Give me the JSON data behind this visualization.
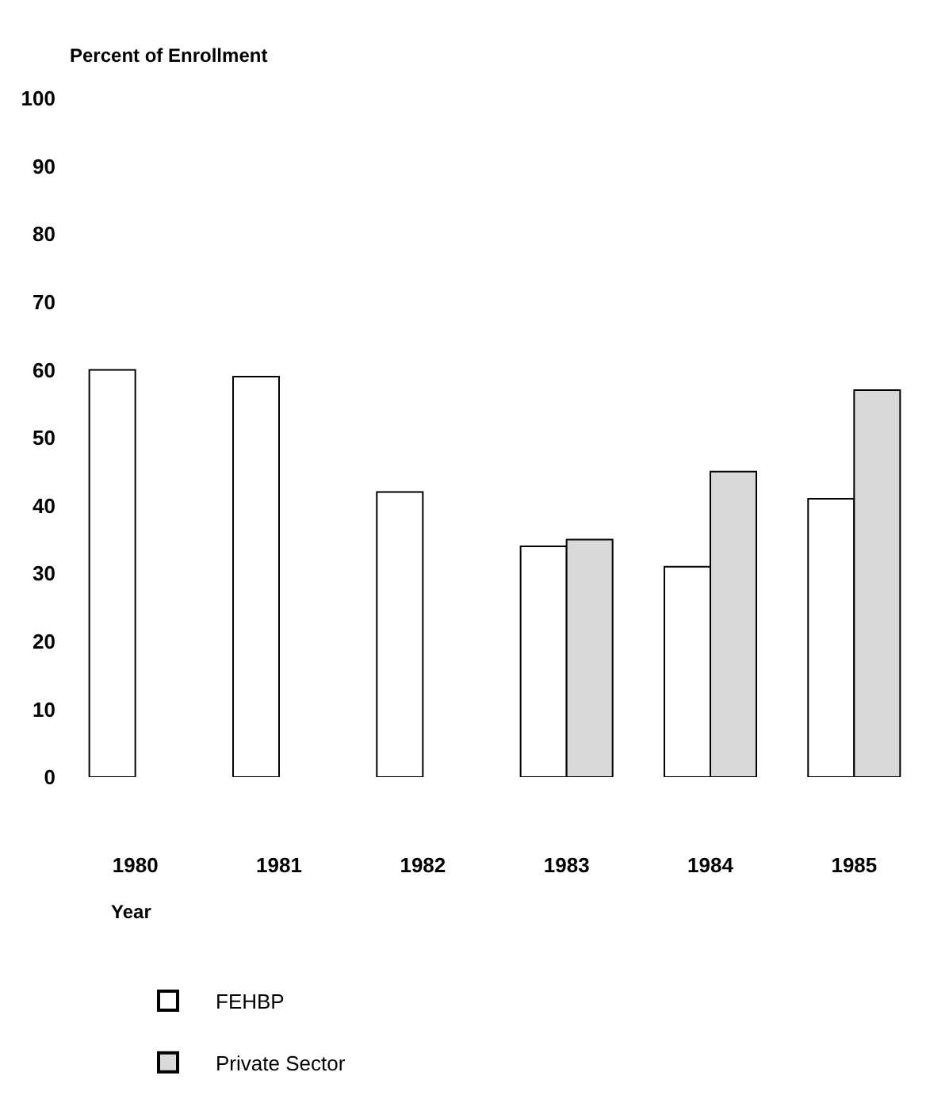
{
  "chart_data": {
    "type": "bar",
    "xlabel": "Year",
    "ylabel": "Percent of Enrollment",
    "categories": [
      "1980",
      "1981",
      "1982",
      "1983",
      "1984",
      "1985"
    ],
    "series": [
      {
        "name": "FEHBP",
        "color": "#ffffff",
        "values": [
          60,
          59,
          42,
          34,
          31,
          41
        ]
      },
      {
        "name": "Private Sector",
        "color": "#d9d9d9",
        "values": [
          null,
          null,
          null,
          35,
          45,
          57
        ]
      }
    ],
    "ylim": [
      0,
      100
    ],
    "yticks": [
      0,
      10,
      20,
      30,
      40,
      50,
      60,
      70,
      80,
      90,
      100
    ],
    "grid": false,
    "legend": "bottom left"
  }
}
